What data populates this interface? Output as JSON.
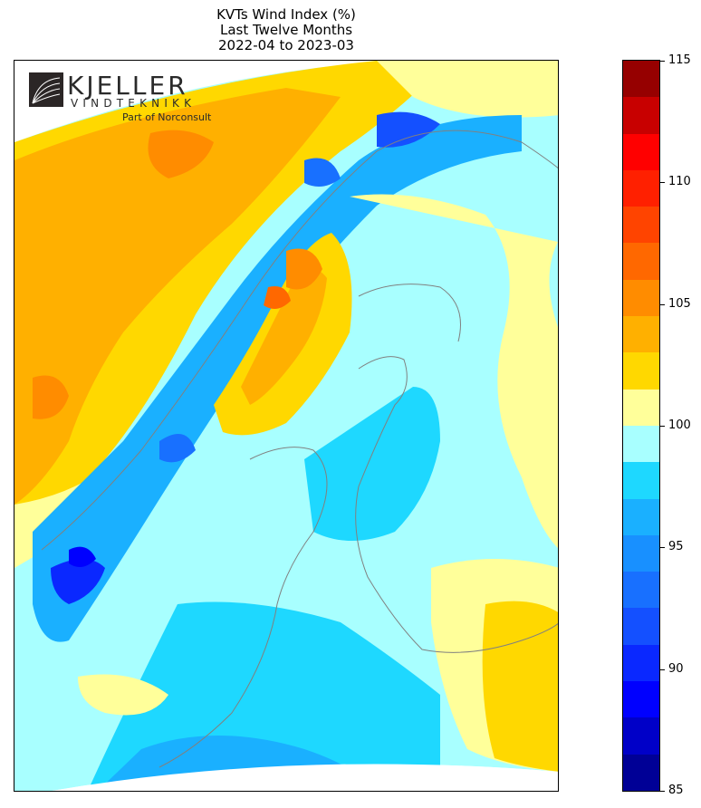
{
  "title": {
    "line1": "KVTs Wind Index (%)",
    "line2": "Last Twelve Months",
    "line3": "2022-04 to 2023-03"
  },
  "logo": {
    "name": "KJELLER",
    "sub": "VINDTEKNIKK",
    "tagline": "Part of Norconsult"
  },
  "colorbar": {
    "min": 85,
    "max": 115,
    "tick_labels": [
      "85",
      "90",
      "95",
      "100",
      "105",
      "110",
      "115"
    ],
    "levels": [
      {
        "from": 85,
        "to": 86.5,
        "color": "#000096"
      },
      {
        "from": 86.5,
        "to": 88,
        "color": "#0000c8"
      },
      {
        "from": 88,
        "to": 89.5,
        "color": "#0000ff"
      },
      {
        "from": 89.5,
        "to": 91,
        "color": "#0a28ff"
      },
      {
        "from": 91,
        "to": 92.5,
        "color": "#1450ff"
      },
      {
        "from": 92.5,
        "to": 94,
        "color": "#1870ff"
      },
      {
        "from": 94,
        "to": 95.5,
        "color": "#1890ff"
      },
      {
        "from": 95.5,
        "to": 97,
        "color": "#1ab0ff"
      },
      {
        "from": 97,
        "to": 98.5,
        "color": "#1ed8ff"
      },
      {
        "from": 98.5,
        "to": 100,
        "color": "#a8ffff"
      },
      {
        "from": 100,
        "to": 101.5,
        "color": "#ffff9a"
      },
      {
        "from": 101.5,
        "to": 103,
        "color": "#ffd800"
      },
      {
        "from": 103,
        "to": 104.5,
        "color": "#ffb000"
      },
      {
        "from": 104.5,
        "to": 106,
        "color": "#ff8c00"
      },
      {
        "from": 106,
        "to": 107.5,
        "color": "#ff6800"
      },
      {
        "from": 107.5,
        "to": 109,
        "color": "#ff4400"
      },
      {
        "from": 109,
        "to": 110.5,
        "color": "#ff2000"
      },
      {
        "from": 110.5,
        "to": 112,
        "color": "#ff0000"
      },
      {
        "from": 112,
        "to": 113.5,
        "color": "#c80000"
      },
      {
        "from": 113.5,
        "to": 115,
        "color": "#960000"
      }
    ]
  },
  "map": {
    "region": "Scandinavia and Finland",
    "coastline_color": "#808080"
  }
}
